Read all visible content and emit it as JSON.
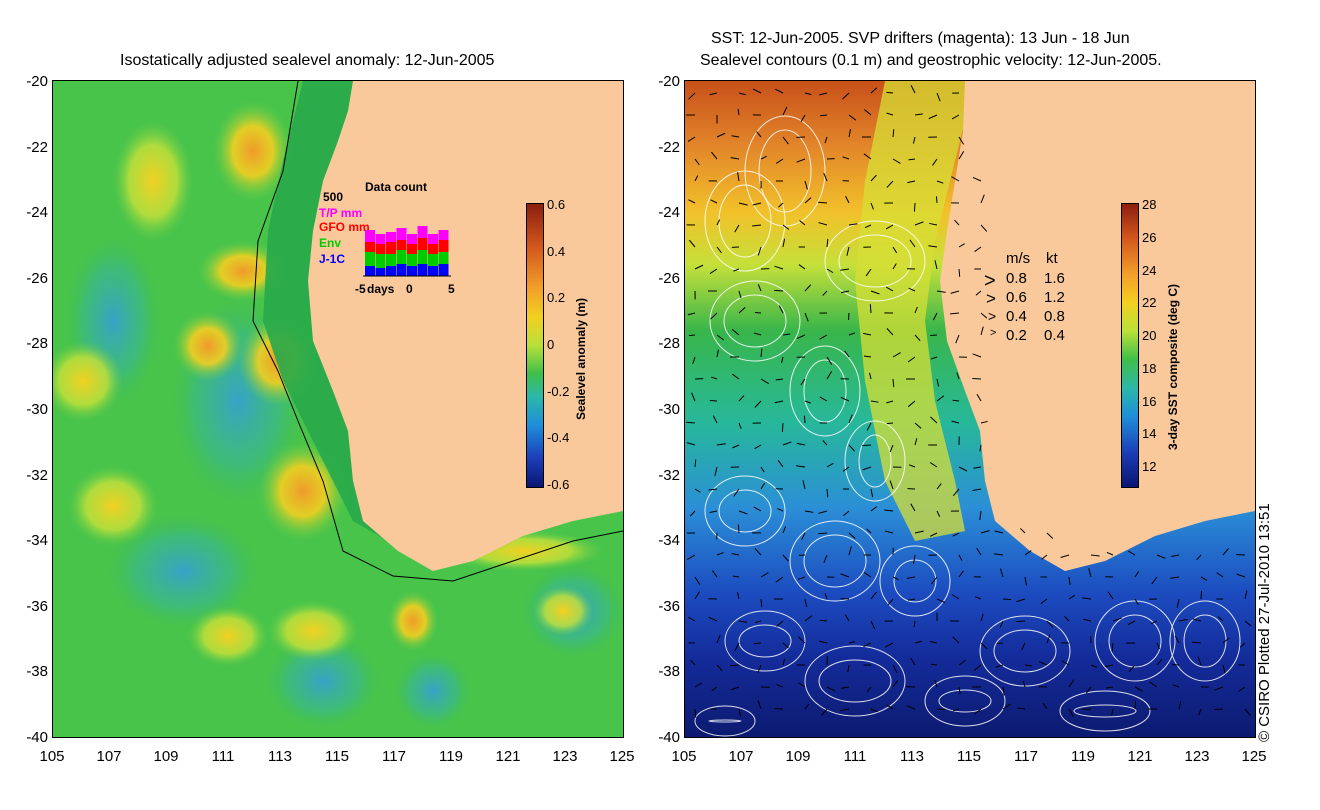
{
  "left_map": {
    "title": "Isostatically adjusted sealevel anomaly: 12-Jun-2005",
    "y_ticks": [
      "-20",
      "-22",
      "-24",
      "-26",
      "-28",
      "-30",
      "-32",
      "-34",
      "-36",
      "-38",
      "-40"
    ],
    "x_ticks": [
      "105",
      "107",
      "109",
      "111",
      "113",
      "115",
      "117",
      "119",
      "121",
      "123",
      "125"
    ],
    "colorbar": {
      "label": "Sealevel anomaly (m)",
      "ticks": [
        "0.6",
        "0.4",
        "0.2",
        "0",
        "-0.2",
        "-0.4",
        "-0.6"
      ]
    },
    "inset": {
      "title": "Data count",
      "ymax_label": "500",
      "legend": [
        {
          "name": "T/P mm",
          "color": "#ff00ff"
        },
        {
          "name": "GFO mm",
          "color": "#ff0000"
        },
        {
          "name": "Env",
          "color": "#00cc00"
        },
        {
          "name": "J-1C",
          "color": "#0000ff"
        }
      ],
      "x_label": "days",
      "x_ticks": [
        "-5",
        "0",
        "5"
      ]
    }
  },
  "right_map": {
    "title_line1": "SST: 12-Jun-2005. SVP drifters (magenta): 13 Jun - 18 Jun",
    "title_line2": "Sealevel contours (0.1 m) and geostrophic velocity: 12-Jun-2005.",
    "y_ticks": [
      "-20",
      "-22",
      "-24",
      "-26",
      "-28",
      "-30",
      "-32",
      "-34",
      "-36",
      "-38",
      "-40"
    ],
    "x_ticks": [
      "105",
      "107",
      "109",
      "111",
      "113",
      "115",
      "117",
      "119",
      "121",
      "123",
      "125"
    ],
    "colorbar": {
      "label": "3-day SST composite (deg C)",
      "ticks": [
        "28",
        "26",
        "24",
        "22",
        "20",
        "18",
        "16",
        "14",
        "12"
      ]
    },
    "velocity_legend": {
      "header_ms": "m/s",
      "header_kt": "kt",
      "rows": [
        {
          "ms": "0.8",
          "kt": "1.6"
        },
        {
          "ms": "0.6",
          "kt": "1.2"
        },
        {
          "ms": "0.4",
          "kt": "0.8"
        },
        {
          "ms": "0.2",
          "kt": "0.4"
        }
      ]
    }
  },
  "credit": "© CSIRO Plotted 27-Jul-2010 13:51",
  "colors": {
    "land": "#f9c99c",
    "ocean_green": "#3dbf4a",
    "coast_green": "#1fa24a"
  }
}
